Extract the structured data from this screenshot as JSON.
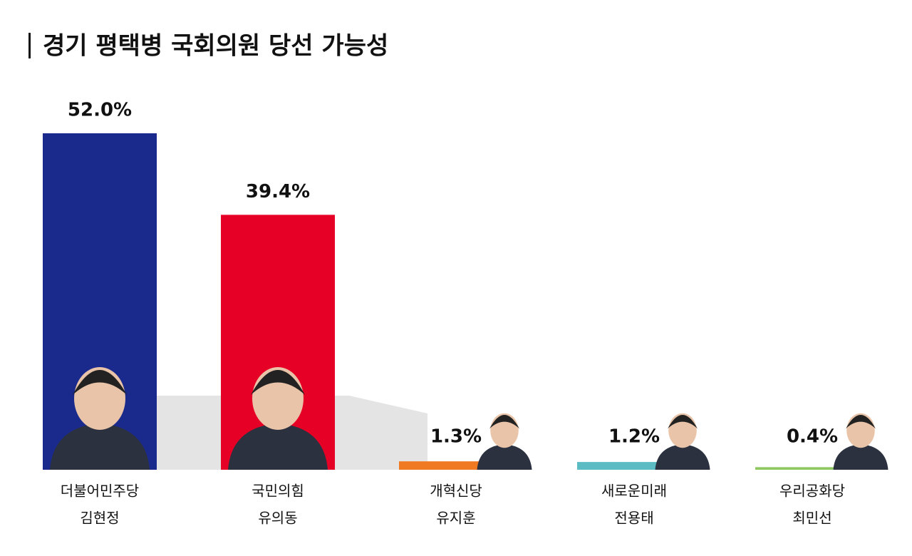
{
  "chart_data": {
    "type": "bar",
    "title": "경기 평택병 국회의원 당선 가능성",
    "categories": [
      "더불어민주당",
      "국민의힘",
      "개혁신당",
      "새로운미래",
      "우리공화당"
    ],
    "candidates": [
      "김현정",
      "유의동",
      "유지훈",
      "전용태",
      "최민선"
    ],
    "values": [
      52.0,
      39.4,
      1.3,
      1.2,
      0.4
    ],
    "value_labels": [
      "52.0%",
      "39.4%",
      "1.3%",
      "1.2%",
      "0.4%"
    ],
    "colors": [
      "#1a2a8c",
      "#e60026",
      "#f07a22",
      "#5bbcc4",
      "#8dc860"
    ]
  }
}
